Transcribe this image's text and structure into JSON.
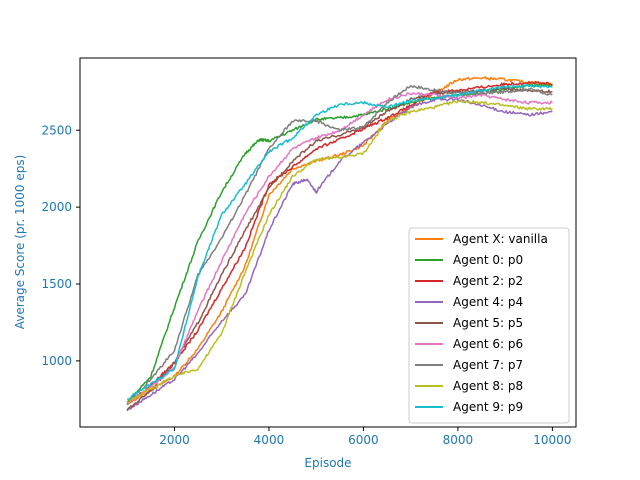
{
  "chart_data": {
    "type": "line",
    "title": "",
    "xlabel": "Episode",
    "ylabel": "Average Score (pr. 1000 eps)",
    "xlim": [
      0,
      10500
    ],
    "ylim": [
      570,
      2970
    ],
    "x_ticks": [
      2000,
      4000,
      6000,
      8000,
      10000
    ],
    "y_ticks": [
      1000,
      1500,
      2000,
      2500
    ],
    "grid": false,
    "legend_position": "lower right",
    "axis_label_color": "#1f77b4",
    "series": [
      {
        "name": "Agent X: vanilla",
        "color": "#ff7f0e",
        "x": [
          1000,
          1500,
          2000,
          2500,
          3000,
          3500,
          4000,
          4500,
          5000,
          5500,
          6000,
          6500,
          7000,
          7500,
          8000,
          8500,
          9000,
          9500,
          10000
        ],
        "y": [
          720,
          810,
          900,
          1080,
          1320,
          1620,
          2080,
          2250,
          2300,
          2340,
          2400,
          2560,
          2650,
          2740,
          2830,
          2840,
          2830,
          2810,
          2800
        ]
      },
      {
        "name": "Agent 0: p0",
        "color": "#2ca02c",
        "x": [
          1000,
          1500,
          2000,
          2500,
          3000,
          3500,
          3800,
          4000,
          4500,
          5000,
          5500,
          6000,
          6500,
          7000,
          7500,
          8000,
          8500,
          9000,
          9500,
          10000
        ],
        "y": [
          730,
          900,
          1350,
          1780,
          2100,
          2350,
          2440,
          2430,
          2500,
          2570,
          2580,
          2600,
          2640,
          2680,
          2710,
          2730,
          2740,
          2770,
          2790,
          2790
        ]
      },
      {
        "name": "Agent 2: p2",
        "color": "#d62728",
        "x": [
          1000,
          1500,
          2000,
          2500,
          3000,
          3500,
          4000,
          4500,
          5000,
          5500,
          6000,
          6500,
          7000,
          7500,
          8000,
          8500,
          9000,
          9500,
          10000
        ],
        "y": [
          720,
          840,
          990,
          1200,
          1470,
          1740,
          2150,
          2260,
          2380,
          2440,
          2510,
          2580,
          2660,
          2750,
          2760,
          2780,
          2800,
          2810,
          2800
        ]
      },
      {
        "name": "Agent 4: p4",
        "color": "#9467bd",
        "x": [
          1000,
          1500,
          2000,
          2500,
          3000,
          3500,
          4000,
          4500,
          4800,
          5000,
          5500,
          6000,
          6500,
          7000,
          7500,
          8000,
          8500,
          9000,
          9500,
          10000
        ],
        "y": [
          680,
          780,
          880,
          1050,
          1260,
          1430,
          1850,
          2150,
          2180,
          2100,
          2300,
          2420,
          2540,
          2650,
          2700,
          2700,
          2660,
          2620,
          2600,
          2620
        ]
      },
      {
        "name": "Agent 5: p5",
        "color": "#8c564b",
        "x": [
          1000,
          1500,
          2000,
          2500,
          3000,
          3500,
          4000,
          4500,
          5000,
          5500,
          6000,
          6500,
          7000,
          7500,
          8000,
          8500,
          9000,
          9500,
          10000
        ],
        "y": [
          680,
          810,
          990,
          1250,
          1560,
          1850,
          2120,
          2300,
          2430,
          2470,
          2520,
          2620,
          2700,
          2740,
          2750,
          2760,
          2770,
          2760,
          2750
        ]
      },
      {
        "name": "Agent 6: p6",
        "color": "#e377c2",
        "x": [
          1000,
          1500,
          2000,
          2500,
          3000,
          3500,
          4000,
          4500,
          5000,
          5500,
          6000,
          6500,
          7000,
          7500,
          8000,
          8500,
          9000,
          9500,
          10000
        ],
        "y": [
          720,
          830,
          960,
          1330,
          1650,
          1960,
          2200,
          2380,
          2450,
          2500,
          2600,
          2700,
          2740,
          2730,
          2710,
          2730,
          2700,
          2680,
          2680
        ]
      },
      {
        "name": "Agent 7: p7",
        "color": "#7f7f7f",
        "x": [
          1000,
          1500,
          2000,
          2500,
          3000,
          3500,
          4000,
          4500,
          5000,
          5500,
          6000,
          6500,
          7000,
          7500,
          8000,
          8500,
          9000,
          9500,
          10000
        ],
        "y": [
          720,
          880,
          1070,
          1560,
          1800,
          2080,
          2380,
          2560,
          2560,
          2500,
          2520,
          2680,
          2790,
          2760,
          2740,
          2740,
          2750,
          2770,
          2730
        ]
      },
      {
        "name": "Agent 8: p8",
        "color": "#bcbd22",
        "x": [
          1000,
          1500,
          2000,
          2500,
          3000,
          3500,
          4000,
          4500,
          5000,
          5500,
          6000,
          6500,
          7000,
          7500,
          8000,
          8500,
          9000,
          9500,
          10000
        ],
        "y": [
          730,
          820,
          900,
          950,
          1180,
          1580,
          1950,
          2200,
          2310,
          2320,
          2350,
          2560,
          2620,
          2650,
          2690,
          2680,
          2660,
          2640,
          2640
        ]
      },
      {
        "name": "Agent 9: p9",
        "color": "#17becf",
        "x": [
          1000,
          1500,
          2000,
          2500,
          3000,
          3500,
          4000,
          4500,
          5000,
          5500,
          6000,
          6500,
          7000,
          7500,
          8000,
          8500,
          9000,
          9500,
          10000
        ],
        "y": [
          750,
          850,
          950,
          1550,
          1950,
          2150,
          2360,
          2450,
          2600,
          2670,
          2680,
          2650,
          2690,
          2710,
          2730,
          2760,
          2780,
          2790,
          2780
        ]
      }
    ]
  }
}
